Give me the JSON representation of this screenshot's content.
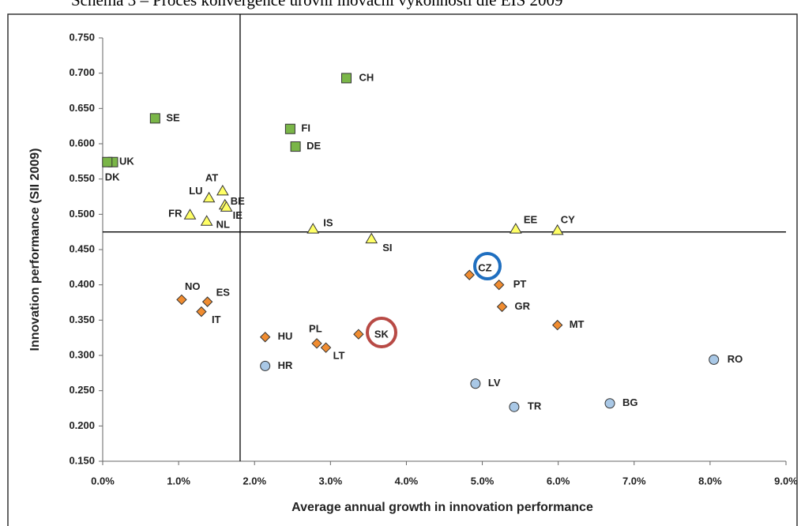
{
  "caption": "Schéma 3 – Proces konvergence úrovní inovační výkonnosti dle EIS 2009",
  "chart_data": {
    "type": "scatter",
    "xlabel": "Average annual growth in innovation performance",
    "ylabel": "Innovation performance (SII 2009)",
    "xlim": [
      0,
      9
    ],
    "ylim": [
      0.15,
      0.75
    ],
    "xticks": [
      {
        "value": 0,
        "label": "0.0%"
      },
      {
        "value": 1,
        "label": "1.0%"
      },
      {
        "value": 2,
        "label": "2.0%"
      },
      {
        "value": 3,
        "label": "3.0%"
      },
      {
        "value": 4,
        "label": "4.0%"
      },
      {
        "value": 5,
        "label": "5.0%"
      },
      {
        "value": 6,
        "label": "6.0%"
      },
      {
        "value": 7,
        "label": "7.0%"
      },
      {
        "value": 8,
        "label": "8.0%"
      },
      {
        "value": 9,
        "label": "9.0%"
      }
    ],
    "yticks": [
      {
        "value": 0.15,
        "label": "0.150"
      },
      {
        "value": 0.2,
        "label": "0.200"
      },
      {
        "value": 0.25,
        "label": "0.250"
      },
      {
        "value": 0.3,
        "label": "0.300"
      },
      {
        "value": 0.35,
        "label": "0.350"
      },
      {
        "value": 0.4,
        "label": "0.400"
      },
      {
        "value": 0.45,
        "label": "0.450"
      },
      {
        "value": 0.5,
        "label": "0.500"
      },
      {
        "value": 0.55,
        "label": "0.550"
      },
      {
        "value": 0.6,
        "label": "0.600"
      },
      {
        "value": 0.65,
        "label": "0.650"
      },
      {
        "value": 0.7,
        "label": "0.700"
      },
      {
        "value": 0.75,
        "label": "0.750"
      }
    ],
    "x_reference": 1.81,
    "y_reference": 0.475,
    "grid": false,
    "series": [
      {
        "color": "#7ab648",
        "marker": "square",
        "labels": [
          "SE",
          "UK",
          "DK",
          "CH",
          "FI",
          "DE"
        ],
        "x": [
          0.69,
          0.135,
          0.06,
          3.21,
          2.47,
          2.54
        ],
        "values": [
          0.636,
          0.574,
          0.574,
          0.693,
          0.621,
          0.596
        ]
      },
      {
        "color": "#ffff66",
        "marker": "triangle",
        "labels": [
          "AT",
          "LU",
          "BE",
          "IE",
          "FR",
          "NL",
          "IS",
          "SI",
          "EE",
          "CY"
        ],
        "x": [
          1.58,
          1.4,
          1.61,
          1.63,
          1.15,
          1.37,
          2.77,
          3.54,
          5.44,
          5.99
        ],
        "values": [
          0.533,
          0.523,
          0.513,
          0.51,
          0.499,
          0.49,
          0.479,
          0.465,
          0.479,
          0.477
        ]
      },
      {
        "color": "#f08c30",
        "marker": "diamond",
        "labels": [
          "NO",
          "ES",
          "IT",
          "HU",
          "PL",
          "LT",
          "SK",
          "CZ",
          "PT",
          "GR",
          "MT"
        ],
        "x": [
          1.04,
          1.38,
          1.3,
          2.14,
          2.82,
          2.94,
          3.37,
          4.83,
          5.22,
          5.26,
          5.99
        ],
        "values": [
          0.379,
          0.376,
          0.362,
          0.326,
          0.317,
          0.311,
          0.33,
          0.414,
          0.4,
          0.369,
          0.343
        ]
      },
      {
        "color": "#a9c8e6",
        "marker": "circle",
        "labels": [
          "HR",
          "LV",
          "TR",
          "BG",
          "RO"
        ],
        "x": [
          2.14,
          4.91,
          5.42,
          6.68,
          8.05
        ],
        "values": [
          0.285,
          0.26,
          0.227,
          0.232,
          0.294
        ]
      }
    ]
  }
}
